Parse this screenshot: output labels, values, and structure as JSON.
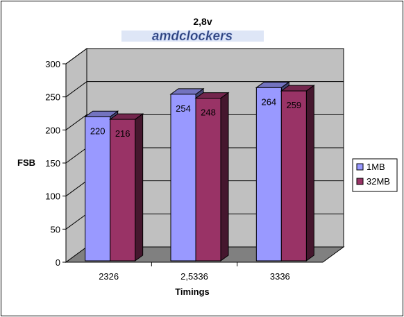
{
  "chart_data": {
    "type": "bar",
    "title": "2,8v",
    "logo_text": "amdclockers",
    "xlabel": "Timings",
    "ylabel": "FSB",
    "ylim": [
      0,
      300
    ],
    "yticks": [
      0,
      50,
      100,
      150,
      200,
      250,
      300
    ],
    "ytick_labels": [
      "0",
      "50",
      "100",
      "150",
      "200",
      "250",
      "300"
    ],
    "categories": [
      "2326",
      "2,5336",
      "3336"
    ],
    "series": [
      {
        "name": "1MB",
        "values": [
          220,
          254,
          264
        ],
        "labels": [
          "220",
          "254",
          "264"
        ],
        "color": "#9999ff"
      },
      {
        "name": "32MB",
        "values": [
          216,
          248,
          259
        ],
        "labels": [
          "216",
          "248",
          "259"
        ],
        "color": "#993366"
      }
    ],
    "legend_position": "right",
    "grid": true,
    "plot_background": "#c0c0c0",
    "floor_color": "#808080",
    "three_d": true
  }
}
